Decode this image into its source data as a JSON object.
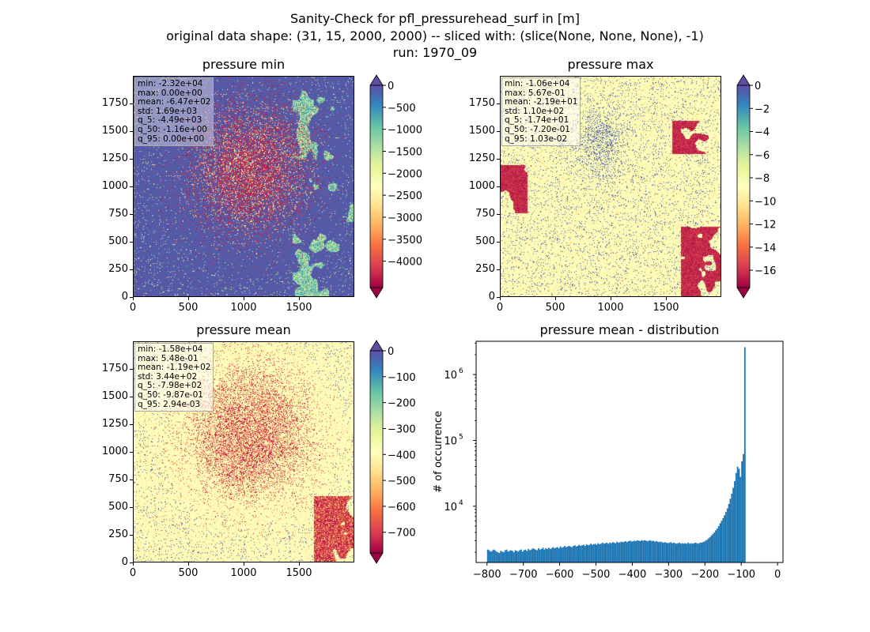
{
  "figure": {
    "title_lines": [
      "Sanity-Check for pfl_pressurehead_surf in [m]",
      "original data shape: (31, 15, 2000, 2000) -- sliced with: (slice(None, None, None), -1)",
      "run: 1970_09"
    ]
  },
  "chart_data": [
    {
      "type": "heatmap",
      "title": "pressure min",
      "xlim": [
        0,
        2000
      ],
      "ylim": [
        0,
        2000
      ],
      "x_ticks": [
        0,
        500,
        1000,
        1500
      ],
      "y_ticks": [
        0,
        250,
        500,
        750,
        1000,
        1250,
        1500,
        1750
      ],
      "colormap": "Spectral",
      "colorbar": {
        "min": -4600,
        "max": 0,
        "extend": "both",
        "ticks": [
          0,
          -500,
          -1000,
          -1500,
          -2000,
          -2500,
          -3000,
          -3500,
          -4000
        ]
      },
      "stats": [
        "min: -2.32e+04",
        "max: 0.00e+00",
        "mean: -6.47e+02",
        "std: 1.69e+03",
        "q_5: -4.49e+03",
        "q_50: -1.16e+00",
        "q_95: 0.00e+00"
      ]
    },
    {
      "type": "heatmap",
      "title": "pressure max",
      "xlim": [
        0,
        2000
      ],
      "ylim": [
        0,
        2000
      ],
      "x_ticks": [
        0,
        500,
        1000,
        1500
      ],
      "y_ticks": [
        0,
        250,
        500,
        750,
        1000,
        1250,
        1500,
        1750
      ],
      "colormap": "Spectral",
      "colorbar": {
        "min": -17.5,
        "max": 0,
        "extend": "both",
        "ticks": [
          0,
          -2,
          -4,
          -6,
          -8,
          -10,
          -12,
          -14,
          -16
        ]
      },
      "stats": [
        "min: -1.06e+04",
        "max: 5.67e-01",
        "mean: -2.19e+01",
        "std: 1.10e+02",
        "q_5: -1.74e+01",
        "q_50: -7.20e-01",
        "q_95: 1.03e-02"
      ]
    },
    {
      "type": "heatmap",
      "title": "pressure mean",
      "xlim": [
        0,
        2000
      ],
      "ylim": [
        0,
        2000
      ],
      "x_ticks": [
        0,
        500,
        1000,
        1500
      ],
      "y_ticks": [
        0,
        250,
        500,
        750,
        1000,
        1250,
        1500,
        1750
      ],
      "colormap": "Spectral",
      "colorbar": {
        "min": -780,
        "max": 0,
        "extend": "both",
        "ticks": [
          0,
          -100,
          -200,
          -300,
          -400,
          -500,
          -600,
          -700
        ]
      },
      "stats": [
        "min: -1.58e+04",
        "max: 5.48e-01",
        "mean: -1.19e+02",
        "std: 3.44e+02",
        "q_5: -7.98e+02",
        "q_50: -9.87e-01",
        "q_95: 2.94e-03"
      ]
    },
    {
      "type": "bar",
      "title": "pressure mean - distribution",
      "xlabel": "",
      "ylabel": "# of occurrence",
      "yscale": "log",
      "xlim": [
        -830,
        15
      ],
      "ylim": [
        1400,
        3200000
      ],
      "x_ticks": [
        -800,
        -700,
        -600,
        -500,
        -400,
        -300,
        -200,
        -100,
        0
      ],
      "y_ticks": [
        10000,
        100000,
        1000000
      ],
      "y_tick_labels": [
        "10",
        "10",
        "10"
      ],
      "y_tick_exponents": [
        "4",
        "5",
        "6"
      ],
      "color": "#1f77b4",
      "bin_width": 4,
      "bins_start": -800,
      "counts": [
        2200,
        2150,
        2050,
        2100,
        2200,
        2150,
        2050,
        2000,
        1950,
        2100,
        2050,
        2000,
        2150,
        2200,
        2050,
        2100,
        2150,
        2100,
        2000,
        2150,
        2100,
        2050,
        2150,
        2200,
        2050,
        2150,
        2200,
        2100,
        2250,
        2150,
        2200,
        2300,
        2250,
        2200,
        2150,
        2300,
        2200,
        2250,
        2350,
        2200,
        2300,
        2250,
        2350,
        2250,
        2300,
        2400,
        2300,
        2350,
        2400,
        2300,
        2450,
        2350,
        2400,
        2500,
        2400,
        2450,
        2500,
        2450,
        2400,
        2500,
        2550,
        2450,
        2500,
        2600,
        2500,
        2550,
        2600,
        2500,
        2650,
        2550,
        2600,
        2700,
        2600,
        2650,
        2700,
        2600,
        2750,
        2650,
        2700,
        2800,
        2700,
        2750,
        2800,
        2700,
        2800,
        2750,
        2850,
        2800,
        2750,
        2900,
        2800,
        2850,
        2900,
        2850,
        2900,
        2950,
        2850,
        2950,
        3000,
        2900,
        2950,
        3000,
        2950,
        3050,
        3000,
        2950,
        3050,
        3000,
        3050,
        3000,
        2950,
        3000,
        3050,
        2950,
        3000,
        2900,
        2950,
        2900,
        2850,
        2900,
        2850,
        2800,
        2850,
        2800,
        2750,
        2800,
        2850,
        2750,
        2800,
        2750,
        2700,
        2750,
        2800,
        2700,
        2750,
        2700,
        2750,
        2700,
        2800,
        2700,
        2750,
        2700,
        2750,
        2800,
        2750,
        2700,
        2800,
        2800,
        2850,
        2900,
        3000,
        3100,
        3250,
        3400,
        3600,
        3800,
        4000,
        4300,
        4600,
        5000,
        5500,
        6000,
        6600,
        7300,
        8200,
        9300,
        10800,
        13000,
        15500,
        19000,
        24000,
        32000,
        40000,
        37000,
        28000,
        48000,
        62000,
        2600000
      ]
    }
  ]
}
